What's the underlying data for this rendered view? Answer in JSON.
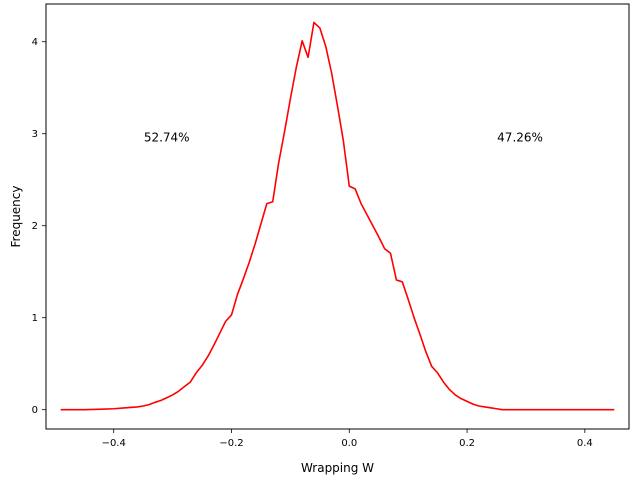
{
  "chart_data": {
    "type": "line",
    "title": "",
    "xlabel": "Wrapping W",
    "ylabel": "Frequency",
    "xlim": [
      -0.515,
      0.475
    ],
    "ylim": [
      -0.21,
      4.41
    ],
    "xticks": [
      -0.4,
      -0.2,
      0.0,
      0.2,
      0.4
    ],
    "xtick_labels": [
      "−0.4",
      "−0.2",
      "0.0",
      "0.2",
      "0.4"
    ],
    "yticks": [
      0,
      1,
      2,
      3,
      4
    ],
    "ytick_labels": [
      "0",
      "1",
      "2",
      "3",
      "4"
    ],
    "grid": false,
    "legend": "none",
    "annotations": [
      {
        "text": "52.74%",
        "x": -0.31,
        "y": 2.96
      },
      {
        "text": "47.26%",
        "x": 0.29,
        "y": 2.96
      }
    ],
    "series": [
      {
        "color": "#ff0000",
        "x": [
          -0.49,
          -0.45,
          -0.42,
          -0.4,
          -0.38,
          -0.36,
          -0.35,
          -0.34,
          -0.33,
          -0.32,
          -0.31,
          -0.3,
          -0.29,
          -0.28,
          -0.27,
          -0.26,
          -0.25,
          -0.24,
          -0.23,
          -0.22,
          -0.21,
          -0.2,
          -0.19,
          -0.18,
          -0.17,
          -0.16,
          -0.15,
          -0.14,
          -0.13,
          -0.12,
          -0.11,
          -0.1,
          -0.09,
          -0.08,
          -0.07,
          -0.06,
          -0.05,
          -0.04,
          -0.03,
          -0.02,
          -0.01,
          0.0,
          0.01,
          0.02,
          0.03,
          0.04,
          0.05,
          0.06,
          0.07,
          0.08,
          0.09,
          0.1,
          0.11,
          0.12,
          0.13,
          0.14,
          0.15,
          0.16,
          0.17,
          0.18,
          0.19,
          0.2,
          0.21,
          0.22,
          0.23,
          0.24,
          0.25,
          0.26,
          0.27,
          0.28,
          0.29,
          0.3,
          0.32,
          0.34,
          0.36,
          0.38,
          0.4,
          0.42,
          0.45
        ],
        "y": [
          0.0,
          0.0,
          0.005,
          0.01,
          0.02,
          0.03,
          0.04,
          0.055,
          0.08,
          0.1,
          0.13,
          0.16,
          0.2,
          0.25,
          0.3,
          0.4,
          0.48,
          0.58,
          0.7,
          0.83,
          0.96,
          1.03,
          1.25,
          1.42,
          1.6,
          1.8,
          2.02,
          2.24,
          2.26,
          2.68,
          3.02,
          3.38,
          3.72,
          4.01,
          3.83,
          4.21,
          4.15,
          3.95,
          3.66,
          3.3,
          2.92,
          2.43,
          2.4,
          2.24,
          2.12,
          2.0,
          1.88,
          1.75,
          1.7,
          1.41,
          1.39,
          1.2,
          1.0,
          0.82,
          0.63,
          0.47,
          0.4,
          0.3,
          0.22,
          0.16,
          0.12,
          0.09,
          0.06,
          0.04,
          0.03,
          0.02,
          0.01,
          0.0,
          0.0,
          0.0,
          0.0,
          0.0,
          0.0,
          0.0,
          0.0,
          0.0,
          0.0,
          0.0,
          0.0
        ]
      }
    ]
  }
}
